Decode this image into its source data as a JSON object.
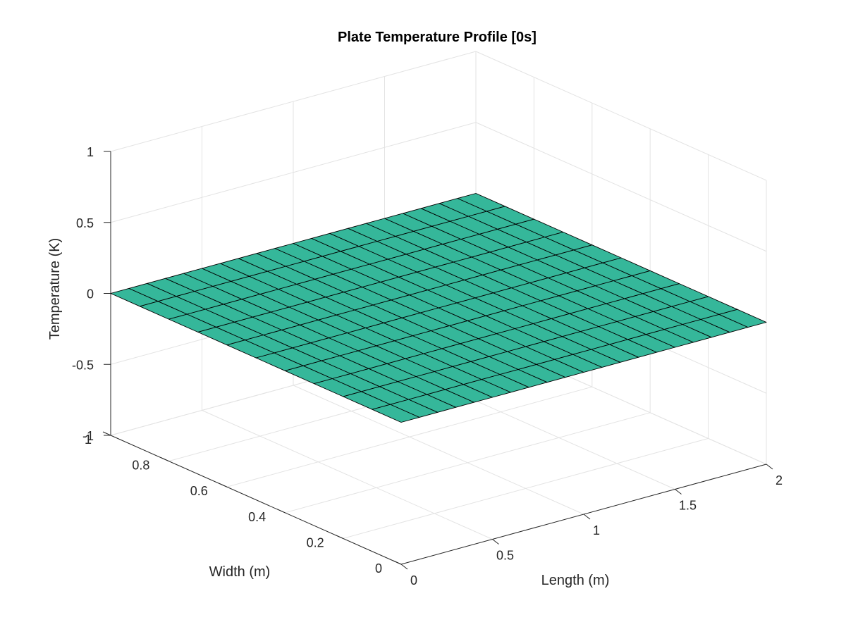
{
  "chart_data": {
    "type": "surface",
    "title": "Plate Temperature Profile [0s]",
    "xlabel": "Length (m)",
    "ylabel": "Width (m)",
    "zlabel": "Temperature (K)",
    "xlim": [
      0,
      2
    ],
    "ylim": [
      0,
      1
    ],
    "zlim": [
      -1,
      1
    ],
    "x_ticks": [
      0,
      0.5,
      1,
      1.5,
      2
    ],
    "x_tick_labels": [
      "0",
      "0.5",
      "1",
      "1.5",
      "2"
    ],
    "y_ticks": [
      0,
      0.2,
      0.4,
      0.6,
      0.8,
      1
    ],
    "y_tick_labels": [
      "0",
      "0.2",
      "0.4",
      "0.6",
      "0.8",
      "1"
    ],
    "z_ticks": [
      -1,
      -0.5,
      0,
      0.5,
      1
    ],
    "z_tick_labels": [
      "-1",
      "-0.5",
      "0",
      "0.5",
      "1"
    ],
    "surface": {
      "x_min": 0,
      "x_max": 2,
      "x_divisions": 20,
      "y_min": 0,
      "y_max": 1,
      "y_divisions": 10,
      "z_value": 0,
      "face_color": "#35b79a",
      "edge_color": "#000000"
    },
    "grid": true,
    "box": false
  }
}
